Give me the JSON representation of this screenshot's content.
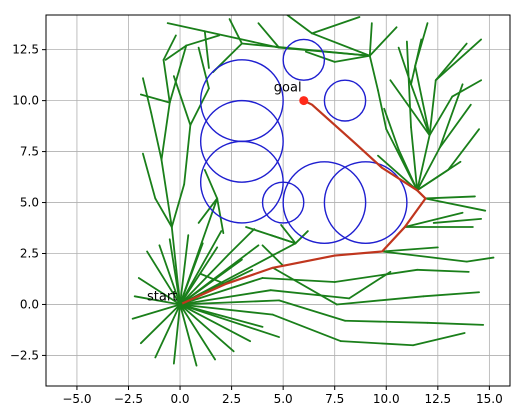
{
  "chart_data": {
    "type": "scatter",
    "title": "",
    "xlabel": "",
    "ylabel": "",
    "xlim": [
      -6.5,
      16.0
    ],
    "ylim": [
      -4.0,
      14.2
    ],
    "x_ticks": [
      -5.0,
      -2.5,
      0.0,
      2.5,
      5.0,
      7.5,
      10.0,
      12.5,
      15.0
    ],
    "y_ticks": [
      -2.5,
      0.0,
      2.5,
      5.0,
      7.5,
      10.0,
      12.5
    ],
    "x_tick_labels": [
      "−5.0",
      "−2.5",
      "0.0",
      "2.5",
      "5.0",
      "7.5",
      "10.0",
      "12.5",
      "15.0"
    ],
    "y_tick_labels": [
      "−2.5",
      "0.0",
      "2.5",
      "5.0",
      "7.5",
      "10.0",
      "12.5"
    ],
    "grid": true,
    "colors": {
      "tree": "#1a7f1a",
      "obstacle": "#1f1fd0",
      "path": "#c0361e",
      "goal_marker": "#ff2a1a"
    },
    "start": {
      "label": "start",
      "x": 0.0,
      "y": 0.0
    },
    "goal": {
      "label": "goal",
      "x": 6.0,
      "y": 10.0
    },
    "obstacles": [
      {
        "cx": 3.0,
        "cy": 10.0,
        "r": 2.0
      },
      {
        "cx": 3.0,
        "cy": 8.0,
        "r": 2.0
      },
      {
        "cx": 3.0,
        "cy": 6.0,
        "r": 2.0
      },
      {
        "cx": 6.0,
        "cy": 12.0,
        "r": 1.0
      },
      {
        "cx": 8.0,
        "cy": 10.0,
        "r": 1.0
      },
      {
        "cx": 5.0,
        "cy": 5.0,
        "r": 1.0
      },
      {
        "cx": 7.0,
        "cy": 5.0,
        "r": 2.0
      },
      {
        "cx": 9.0,
        "cy": 5.0,
        "r": 2.0
      }
    ],
    "path": [
      [
        0.0,
        0.0
      ],
      [
        2.2,
        1.0
      ],
      [
        4.5,
        1.8
      ],
      [
        7.5,
        2.4
      ],
      [
        9.8,
        2.6
      ],
      [
        10.9,
        3.8
      ],
      [
        11.9,
        5.2
      ],
      [
        11.5,
        5.6
      ],
      [
        9.8,
        6.7
      ],
      [
        8.5,
        7.9
      ],
      [
        6.4,
        9.8
      ],
      [
        6.0,
        10.0
      ]
    ],
    "tree_edges": [
      [
        0,
        0,
        -1.6,
        2.6
      ],
      [
        0,
        0,
        -1.0,
        2.9
      ],
      [
        0,
        0,
        -0.5,
        3.2
      ],
      [
        0,
        0,
        0.4,
        3.4
      ],
      [
        0,
        0,
        1.1,
        3.0
      ],
      [
        0,
        0,
        1.8,
        2.8
      ],
      [
        0,
        0,
        2.4,
        2.5
      ],
      [
        0,
        0,
        3.0,
        2.2
      ],
      [
        0,
        0,
        3.5,
        1.7
      ],
      [
        0,
        0,
        4.0,
        1.3
      ],
      [
        0,
        0,
        4.4,
        0.7
      ],
      [
        0,
        0,
        4.8,
        0.2
      ],
      [
        0,
        0,
        4.5,
        -0.5
      ],
      [
        0,
        0,
        4.0,
        -1.1
      ],
      [
        0,
        0,
        3.4,
        -1.8
      ],
      [
        0,
        0,
        2.6,
        -2.3
      ],
      [
        0,
        0,
        1.7,
        -2.7
      ],
      [
        0,
        0,
        0.8,
        -3.0
      ],
      [
        0,
        0,
        -0.3,
        -2.9
      ],
      [
        0,
        0,
        -1.2,
        -2.6
      ],
      [
        0,
        0,
        -1.9,
        -1.9
      ],
      [
        0,
        0,
        -2.3,
        -0.7
      ],
      [
        0,
        0,
        -2.2,
        0.4
      ],
      [
        0,
        0,
        -2.0,
        1.3
      ],
      [
        0,
        0,
        4.8,
        -1.6
      ],
      [
        0,
        0,
        3.8,
        2.9
      ],
      [
        0,
        0,
        2.0,
        3.6
      ],
      [
        4.0,
        1.3,
        7.5,
        1.1
      ],
      [
        4.5,
        1.8,
        7.6,
        0.0
      ],
      [
        4.8,
        0.2,
        8.0,
        -0.8
      ],
      [
        4.5,
        -0.5,
        7.8,
        -1.8
      ],
      [
        4.4,
        0.7,
        8.2,
        0.3
      ],
      [
        7.5,
        1.1,
        11.5,
        1.7
      ],
      [
        7.6,
        0.0,
        11.8,
        0.4
      ],
      [
        8.0,
        -0.8,
        12.0,
        -0.9
      ],
      [
        7.8,
        -1.8,
        11.3,
        -2.0
      ],
      [
        8.2,
        0.3,
        10.2,
        1.6
      ],
      [
        11.5,
        1.7,
        14.0,
        1.6
      ],
      [
        11.8,
        0.4,
        14.5,
        0.6
      ],
      [
        12.0,
        -0.9,
        14.7,
        -1.0
      ],
      [
        11.3,
        -2.0,
        13.8,
        -1.4
      ],
      [
        9.8,
        2.6,
        13.9,
        2.1
      ],
      [
        9.8,
        2.6,
        12.5,
        2.8
      ],
      [
        10.9,
        3.8,
        14.2,
        3.8
      ],
      [
        10.9,
        3.8,
        13.7,
        4.5
      ],
      [
        11.9,
        5.2,
        14.3,
        5.3
      ],
      [
        11.9,
        5.2,
        14.8,
        4.6
      ],
      [
        12.3,
        4.0,
        14.6,
        4.2
      ],
      [
        13.9,
        2.1,
        15.2,
        2.3
      ],
      [
        11.5,
        5.6,
        12.1,
        8.3
      ],
      [
        11.5,
        5.6,
        12.6,
        7.7
      ],
      [
        11.5,
        5.6,
        13.0,
        6.6
      ],
      [
        11.5,
        5.6,
        10.6,
        7.6
      ],
      [
        11.5,
        5.6,
        11.2,
        8.7
      ],
      [
        11.5,
        5.6,
        9.6,
        7.3
      ],
      [
        11.5,
        5.6,
        13.6,
        7.0
      ],
      [
        11.5,
        5.6,
        10.0,
        8.6
      ],
      [
        12.1,
        8.3,
        11.2,
        10.8
      ],
      [
        12.1,
        8.3,
        12.4,
        11.0
      ],
      [
        12.1,
        8.3,
        13.2,
        10.2
      ],
      [
        12.1,
        8.3,
        11.4,
        11.7
      ],
      [
        12.6,
        7.7,
        14.1,
        9.8
      ],
      [
        12.6,
        7.7,
        13.7,
        10.8
      ],
      [
        11.2,
        10.8,
        10.6,
        12.6
      ],
      [
        11.2,
        10.8,
        11.7,
        13.0
      ],
      [
        12.4,
        11.0,
        13.9,
        12.8
      ],
      [
        12.4,
        11.0,
        14.6,
        13.0
      ],
      [
        13.2,
        10.2,
        14.6,
        11.0
      ],
      [
        11.4,
        11.7,
        12.0,
        13.8
      ],
      [
        10.6,
        7.6,
        9.9,
        9.6
      ],
      [
        10.0,
        8.6,
        9.6,
        10.5
      ],
      [
        9.6,
        10.5,
        9.2,
        12.2
      ],
      [
        11.2,
        8.7,
        11.0,
        12.9
      ],
      [
        12.1,
        8.3,
        10.2,
        11.0
      ],
      [
        13.0,
        6.6,
        14.5,
        8.6
      ],
      [
        9.2,
        12.2,
        4.8,
        12.6
      ],
      [
        9.2,
        12.2,
        3.0,
        12.8
      ],
      [
        9.2,
        12.2,
        6.4,
        13.3
      ],
      [
        9.2,
        12.2,
        9.3,
        13.8
      ],
      [
        9.2,
        12.2,
        7.5,
        11.9
      ],
      [
        9.2,
        12.2,
        10.5,
        13.6
      ],
      [
        4.8,
        12.6,
        1.2,
        13.4
      ],
      [
        3.0,
        12.8,
        1.6,
        11.4
      ],
      [
        4.8,
        12.6,
        3.8,
        13.8
      ],
      [
        6.4,
        13.3,
        5.2,
        14.2
      ],
      [
        6.4,
        13.3,
        8.7,
        14.1
      ],
      [
        3.0,
        12.8,
        2.4,
        14.0
      ],
      [
        1.2,
        13.4,
        1.4,
        11.6
      ],
      [
        1.2,
        13.4,
        -0.6,
        13.8
      ],
      [
        7.5,
        11.9,
        6.1,
        12.4
      ],
      [
        0,
        0,
        -0.4,
        3.8
      ],
      [
        -0.4,
        3.8,
        -0.9,
        7.1
      ],
      [
        -0.9,
        7.1,
        -0.5,
        9.9
      ],
      [
        -0.9,
        7.1,
        -1.4,
        9.4
      ],
      [
        -0.5,
        9.9,
        -0.8,
        12.0
      ],
      [
        -0.5,
        9.9,
        0.3,
        12.7
      ],
      [
        -0.8,
        12.0,
        -0.2,
        13.2
      ],
      [
        -1.4,
        9.4,
        -1.8,
        11.1
      ],
      [
        -0.4,
        3.8,
        -1.2,
        5.2
      ],
      [
        -0.4,
        3.8,
        0.2,
        5.9
      ],
      [
        -1.2,
        5.2,
        -1.8,
        7.4
      ],
      [
        0.2,
        5.9,
        0.5,
        8.8
      ],
      [
        0.5,
        8.8,
        -0.3,
        11.2
      ],
      [
        0.5,
        8.8,
        1.4,
        10.6
      ],
      [
        1.4,
        10.6,
        0.9,
        12.6
      ],
      [
        -0.5,
        9.9,
        -1.9,
        10.3
      ],
      [
        0.3,
        12.7,
        1.9,
        13.2
      ],
      [
        0.3,
        12.7,
        -0.7,
        12.0
      ],
      [
        0,
        0,
        1.8,
        5.2
      ],
      [
        1.8,
        5.2,
        1.2,
        6.6
      ],
      [
        1.8,
        5.2,
        0.9,
        4.0
      ],
      [
        1.8,
        5.2,
        2.1,
        3.5
      ],
      [
        0,
        0,
        5.6,
        3.0
      ],
      [
        5.6,
        3.0,
        4.4,
        3.4
      ],
      [
        5.6,
        3.0,
        3.2,
        3.8
      ],
      [
        5.6,
        3.0,
        6.2,
        3.6
      ],
      [
        5.0,
        1.9,
        4.0,
        2.9
      ],
      [
        2.4,
        2.5,
        3.6,
        3.7
      ],
      [
        5.6,
        3.0,
        4.9,
        3.9
      ],
      [
        2.2,
        1.0,
        1.0,
        1.5
      ]
    ]
  }
}
